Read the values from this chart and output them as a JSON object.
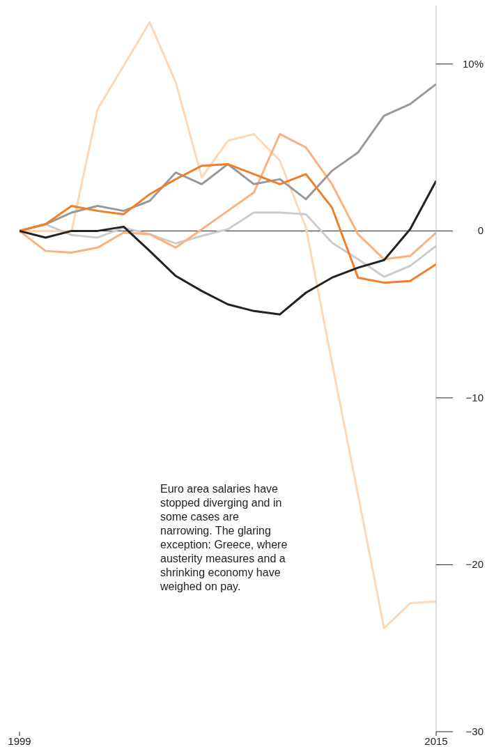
{
  "chart_data": {
    "type": "line",
    "x": [
      1999,
      2000,
      2001,
      2002,
      2003,
      2004,
      2005,
      2006,
      2007,
      2008,
      2009,
      2010,
      2011,
      2012,
      2013,
      2014,
      2015
    ],
    "series": [
      {
        "color": "#fdd7b8",
        "values": [
          0,
          0,
          0,
          7.3,
          9.9,
          12.5,
          8.9,
          3.2,
          5.4,
          5.8,
          4.2,
          0.2,
          -7.9,
          -15.8,
          -23.8,
          -22.3,
          -22.2
        ]
      },
      {
        "color": "#cccccc",
        "values": [
          0,
          0.4,
          -0.25,
          -0.4,
          0.2,
          -0.2,
          -0.75,
          -0.3,
          0.1,
          1.1,
          1.1,
          1.0,
          -0.7,
          -1.7,
          -2.75,
          -2.1,
          -0.9
        ]
      },
      {
        "color": "#f9b27f",
        "values": [
          0,
          -1.2,
          -1.3,
          -1.0,
          -0.1,
          -0.2,
          -1.0,
          0.1,
          1.2,
          2.3,
          5.8,
          5.0,
          2.8,
          -0.2,
          -1.7,
          -1.5,
          -0.1
        ]
      },
      {
        "color": "#999999",
        "values": [
          0,
          0.4,
          1.1,
          1.5,
          1.2,
          1.8,
          3.5,
          2.8,
          4.0,
          2.8,
          3.1,
          1.9,
          3.6,
          4.7,
          6.9,
          7.6,
          8.8
        ]
      },
      {
        "color": "#f07f2a",
        "values": [
          0,
          0.4,
          1.5,
          1.2,
          1.0,
          2.2,
          3.1,
          3.9,
          4.0,
          3.4,
          2.8,
          3.4,
          1.4,
          -2.8,
          -3.1,
          -3.0,
          -2.0
        ]
      },
      {
        "color": "#222222",
        "values": [
          0,
          -0.4,
          0,
          0,
          0.25,
          -1.2,
          -2.7,
          -3.6,
          -4.4,
          -4.8,
          -5.0,
          -3.7,
          -2.8,
          -2.2,
          -1.75,
          0.1,
          3.0
        ]
      }
    ],
    "xlim": [
      1999,
      2015
    ],
    "xticks": [
      1999,
      2015
    ],
    "ylim": [
      -30,
      13.5
    ],
    "yticks": [
      {
        "value": 10,
        "label": "10%"
      },
      0,
      {
        "value": -10,
        "label": "−10"
      },
      {
        "value": -20,
        "label": "−20"
      },
      {
        "value": -30,
        "label": "−30"
      }
    ],
    "ref_lines": [
      {
        "axis": "y",
        "value": 0,
        "color": "#222222"
      }
    ],
    "annotations": [
      "Euro area salaries have stopped diverging and in some cases are narrowing. The glaring exception: Greece, where austerity measures and a shrinking economy have weighed on pay."
    ]
  }
}
